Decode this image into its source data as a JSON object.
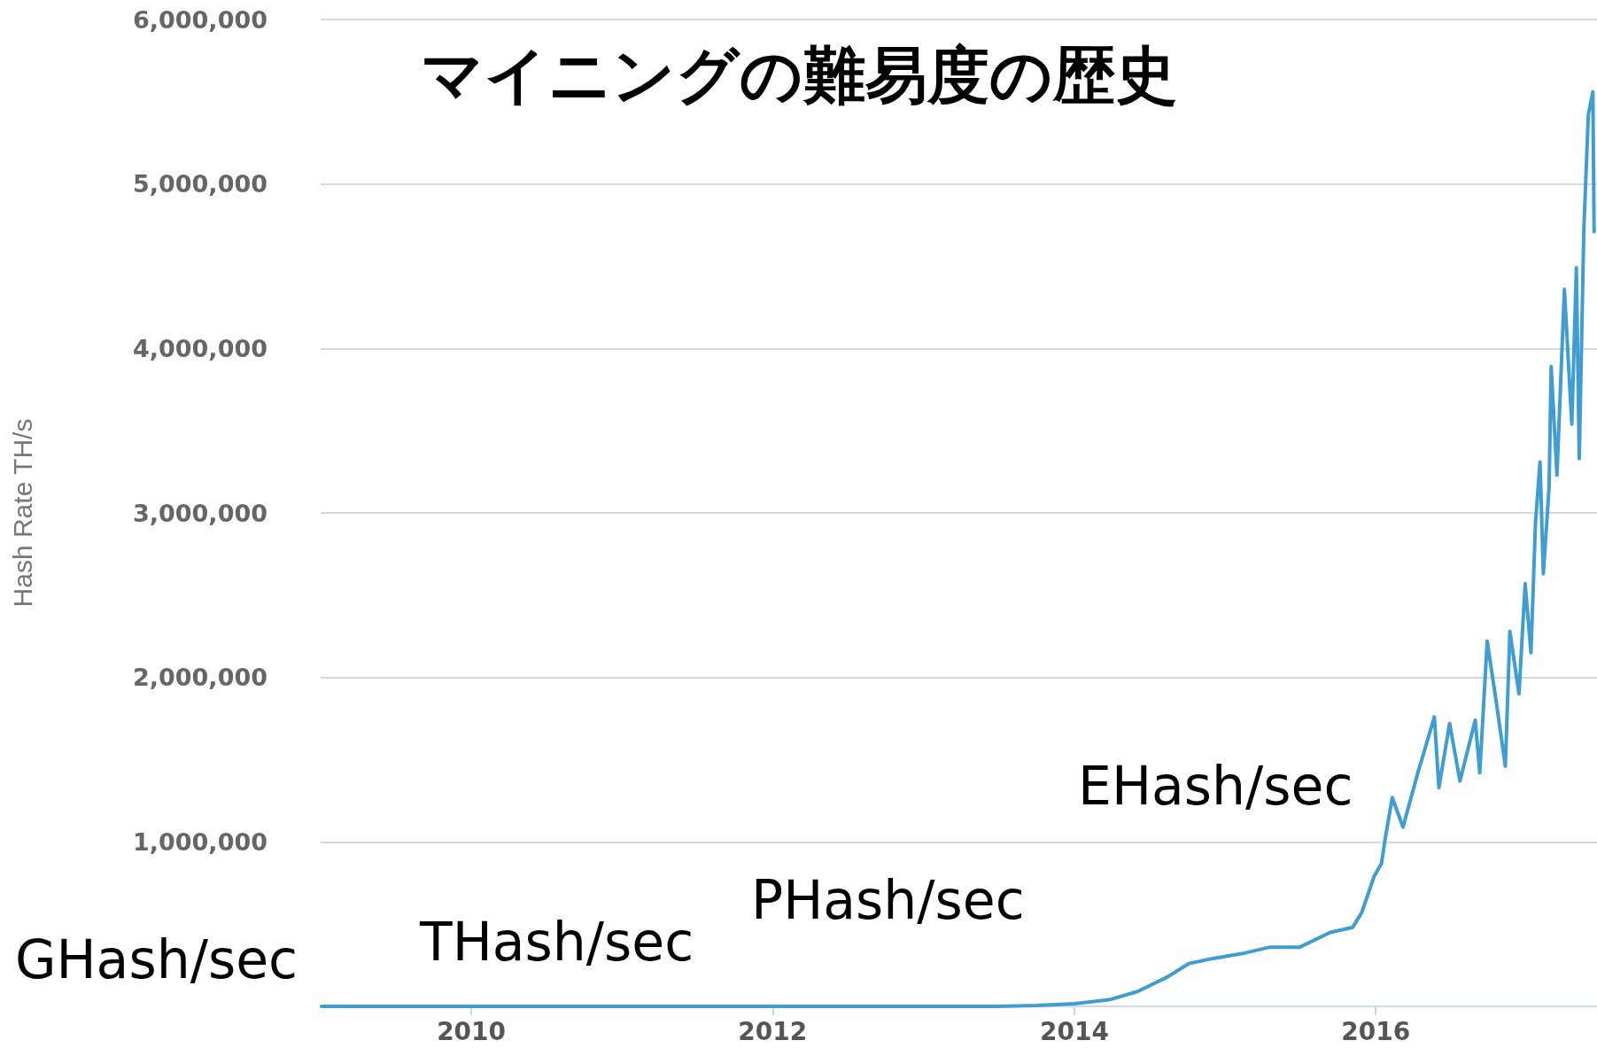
{
  "chart_data": {
    "type": "line",
    "title": "マイニングの難易度の歴史",
    "ylabel": "Hash Rate TH/s",
    "annotations": [
      "GHash/sec",
      "THash/sec",
      "PHash/sec",
      "EHash/sec"
    ],
    "x": [
      "2009-01-03",
      "2011-01-01",
      "2013-01-01",
      "2013-07-01",
      "2013-10-01",
      "2014-01-01",
      "2014-03-26",
      "2014-06-03",
      "2014-08-15",
      "2014-10-05",
      "2014-11-30",
      "2015-02-10",
      "2015-04-20",
      "2015-07-01",
      "2015-09-13",
      "2015-11-06",
      "2015-11-28",
      "2015-12-28",
      "2016-01-15",
      "2016-01-22",
      "2016-02-10",
      "2016-03-07",
      "2016-04-12",
      "2016-05-22",
      "2016-06-02",
      "2016-06-28",
      "2016-07-23",
      "2016-08-29",
      "2016-09-09",
      "2016-09-27",
      "2016-10-19",
      "2016-11-10",
      "2016-11-21",
      "2016-12-13",
      "2016-12-28",
      "2017-01-11",
      "2017-01-22",
      "2017-02-02",
      "2017-02-10",
      "2017-02-24",
      "2017-03-01",
      "2017-03-15",
      "2017-04-02",
      "2017-04-20",
      "2017-05-01",
      "2017-05-08",
      "2017-05-19",
      "2017-05-30",
      "2017-06-10",
      "2017-06-13"
    ],
    "series": [
      {
        "color": "#3f9dd1",
        "values": [
          0,
          0,
          0,
          0,
          5000,
          16000,
          40000,
          90000,
          180000,
          260000,
          290000,
          320000,
          360000,
          360000,
          450000,
          480000,
          570000,
          790000,
          870000,
          990000,
          1270000,
          1090000,
          1420000,
          1760000,
          1330000,
          1720000,
          1370000,
          1740000,
          1420000,
          2220000,
          1850000,
          1460000,
          2280000,
          1900000,
          2570000,
          2150000,
          2940000,
          3310000,
          2630000,
          3160000,
          3890000,
          3230000,
          4360000,
          3540000,
          4490000,
          3330000,
          4710000,
          5420000,
          5560000,
          4710000
        ]
      }
    ],
    "xlim": [
      "2009-01-01",
      "2017-06-20"
    ],
    "xticks": [
      "2010",
      "2012",
      "2014",
      "2016"
    ],
    "ylim": [
      0,
      6000000
    ],
    "yticks": [
      {
        "value": 0,
        "label": null
      },
      {
        "value": 1000000,
        "label": "1,000,000"
      },
      {
        "value": 2000000,
        "label": "2,000,000"
      },
      {
        "value": 3000000,
        "label": "3,000,000"
      },
      {
        "value": 4000000,
        "label": "4,000,000"
      },
      {
        "value": 5000000,
        "label": "5,000,000"
      },
      {
        "value": 6000000,
        "label": "6,000,000"
      }
    ],
    "grid": "y",
    "marker": "none",
    "line_style": "solid"
  }
}
